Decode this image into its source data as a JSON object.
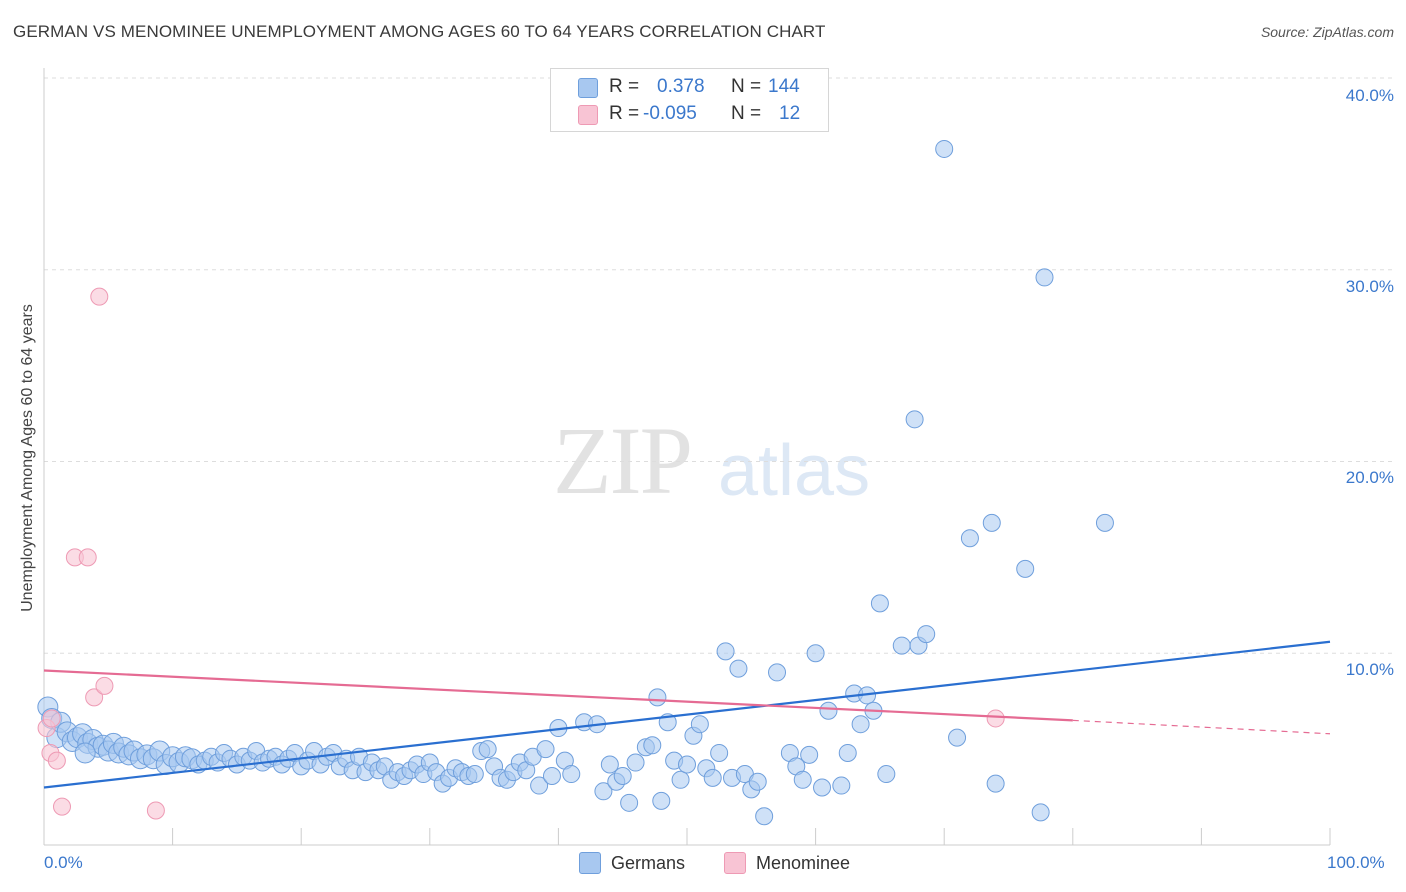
{
  "header": {
    "title": "GERMAN VS MENOMINEE UNEMPLOYMENT AMONG AGES 60 TO 64 YEARS CORRELATION CHART",
    "source": "Source: ZipAtlas.com"
  },
  "watermark": {
    "zip": "ZIP",
    "atlas": "atlas"
  },
  "legend_top": {
    "rows": [
      {
        "r_label": "R =",
        "r_value": "0.378",
        "n_label": "N =",
        "n_value": "144",
        "color": "#a8c8f0"
      },
      {
        "r_label": "R =",
        "r_value": "-0.095",
        "n_label": "N =",
        "n_value": "12",
        "color": "#f5b8cb"
      }
    ]
  },
  "legend_bottom": {
    "items": [
      {
        "label": "Germans",
        "color": "#a8c8f0"
      },
      {
        "label": "Menominee",
        "color": "#f5b8cb"
      }
    ]
  },
  "axes": {
    "ylabel": "Unemployment Among Ages 60 to 64 years",
    "x_tick_labels": [
      "0.0%",
      "100.0%"
    ],
    "y_tick_labels": [
      "10.0%",
      "20.0%",
      "30.0%",
      "40.0%"
    ]
  },
  "colors": {
    "germans_fill": "#a8c8f0",
    "germans_stroke": "#6f9fdc",
    "germans_line": "#2a6fd0",
    "menominee_fill": "#f8c4d4",
    "menominee_stroke": "#ee9ab4",
    "menominee_line": "#e56b93",
    "grid": "#dddddd",
    "tick_text": "#3b78cc"
  },
  "chart_data": {
    "type": "scatter",
    "xlim": [
      0,
      100
    ],
    "ylim": [
      0,
      40
    ],
    "grid": true,
    "legend_position": "bottom",
    "series": [
      {
        "name": "Germans",
        "trend": {
          "x": [
            0,
            100
          ],
          "y": [
            3.0,
            10.6
          ]
        },
        "points": [
          [
            0.3,
            7.2
          ],
          [
            0.6,
            6.6
          ],
          [
            1.0,
            5.6
          ],
          [
            1.3,
            6.4
          ],
          [
            1.8,
            5.9
          ],
          [
            2.2,
            5.4
          ],
          [
            2.6,
            5.6
          ],
          [
            3.0,
            5.8
          ],
          [
            3.4,
            5.3
          ],
          [
            3.8,
            5.5
          ],
          [
            4.2,
            5.1
          ],
          [
            4.6,
            5.2
          ],
          [
            5.0,
            4.9
          ],
          [
            5.4,
            5.3
          ],
          [
            5.8,
            4.8
          ],
          [
            6.2,
            5.1
          ],
          [
            6.6,
            4.7
          ],
          [
            7.0,
            4.9
          ],
          [
            7.5,
            4.5
          ],
          [
            8.0,
            4.7
          ],
          [
            8.5,
            4.5
          ],
          [
            9.0,
            4.9
          ],
          [
            9.5,
            4.2
          ],
          [
            10.0,
            4.6
          ],
          [
            10.5,
            4.3
          ],
          [
            11.0,
            4.6
          ],
          [
            11.5,
            4.5
          ],
          [
            12.0,
            4.2
          ],
          [
            12.5,
            4.4
          ],
          [
            13.0,
            4.6
          ],
          [
            13.5,
            4.3
          ],
          [
            14.0,
            4.8
          ],
          [
            14.5,
            4.5
          ],
          [
            15.0,
            4.2
          ],
          [
            15.5,
            4.6
          ],
          [
            16.0,
            4.4
          ],
          [
            16.5,
            4.9
          ],
          [
            17.0,
            4.3
          ],
          [
            17.5,
            4.5
          ],
          [
            18.0,
            4.6
          ],
          [
            18.5,
            4.2
          ],
          [
            19.0,
            4.5
          ],
          [
            19.5,
            4.8
          ],
          [
            20.0,
            4.1
          ],
          [
            20.5,
            4.4
          ],
          [
            21.0,
            4.9
          ],
          [
            21.5,
            4.2
          ],
          [
            22.0,
            4.6
          ],
          [
            22.5,
            4.8
          ],
          [
            23.0,
            4.1
          ],
          [
            23.5,
            4.5
          ],
          [
            24.0,
            3.9
          ],
          [
            24.5,
            4.6
          ],
          [
            25.0,
            3.8
          ],
          [
            25.5,
            4.3
          ],
          [
            26.0,
            3.9
          ],
          [
            26.5,
            4.1
          ],
          [
            27.0,
            3.4
          ],
          [
            27.5,
            3.8
          ],
          [
            28.0,
            3.6
          ],
          [
            28.5,
            3.9
          ],
          [
            29.0,
            4.2
          ],
          [
            29.5,
            3.7
          ],
          [
            30.0,
            4.3
          ],
          [
            30.5,
            3.8
          ],
          [
            31.0,
            3.2
          ],
          [
            31.5,
            3.5
          ],
          [
            32.0,
            4.0
          ],
          [
            32.5,
            3.8
          ],
          [
            33.0,
            3.6
          ],
          [
            33.5,
            3.7
          ],
          [
            34.0,
            4.9
          ],
          [
            34.5,
            5.0
          ],
          [
            35.0,
            4.1
          ],
          [
            35.5,
            3.5
          ],
          [
            36.0,
            3.4
          ],
          [
            36.5,
            3.8
          ],
          [
            37.0,
            4.3
          ],
          [
            37.5,
            3.9
          ],
          [
            38.0,
            4.6
          ],
          [
            38.5,
            3.1
          ],
          [
            39.0,
            5.0
          ],
          [
            39.5,
            3.6
          ],
          [
            40.0,
            6.1
          ],
          [
            40.5,
            4.4
          ],
          [
            41.0,
            3.7
          ],
          [
            42.0,
            6.4
          ],
          [
            43.0,
            6.3
          ],
          [
            43.5,
            2.8
          ],
          [
            44.0,
            4.2
          ],
          [
            44.5,
            3.3
          ],
          [
            45.0,
            3.6
          ],
          [
            45.5,
            2.2
          ],
          [
            46.0,
            4.3
          ],
          [
            46.8,
            5.1
          ],
          [
            47.3,
            5.2
          ],
          [
            47.7,
            7.7
          ],
          [
            48.0,
            2.3
          ],
          [
            48.5,
            6.4
          ],
          [
            49.0,
            4.4
          ],
          [
            49.5,
            3.4
          ],
          [
            50.0,
            4.2
          ],
          [
            50.5,
            5.7
          ],
          [
            51.0,
            6.3
          ],
          [
            51.5,
            4.0
          ],
          [
            52.0,
            3.5
          ],
          [
            52.5,
            4.8
          ],
          [
            53.0,
            10.1
          ],
          [
            53.5,
            3.5
          ],
          [
            54.0,
            9.2
          ],
          [
            54.5,
            3.7
          ],
          [
            55.0,
            2.9
          ],
          [
            55.5,
            3.3
          ],
          [
            56.0,
            1.5
          ],
          [
            57.0,
            9.0
          ],
          [
            58.0,
            4.8
          ],
          [
            58.5,
            4.1
          ],
          [
            59.0,
            3.4
          ],
          [
            59.5,
            4.7
          ],
          [
            60.0,
            10.0
          ],
          [
            60.5,
            3.0
          ],
          [
            61.0,
            7.0
          ],
          [
            62.0,
            3.1
          ],
          [
            62.5,
            4.8
          ],
          [
            63.0,
            7.9
          ],
          [
            63.5,
            6.3
          ],
          [
            64.0,
            7.8
          ],
          [
            64.5,
            7.0
          ],
          [
            65.0,
            12.6
          ],
          [
            65.5,
            3.7
          ],
          [
            66.7,
            10.4
          ],
          [
            67.7,
            22.2
          ],
          [
            68.0,
            10.4
          ],
          [
            68.6,
            11.0
          ],
          [
            70.0,
            36.3
          ],
          [
            71.0,
            5.6
          ],
          [
            72.0,
            16.0
          ],
          [
            73.7,
            16.8
          ],
          [
            74.0,
            3.2
          ],
          [
            76.3,
            14.4
          ],
          [
            77.5,
            1.7
          ],
          [
            77.8,
            29.6
          ],
          [
            82.5,
            16.8
          ],
          [
            3.2,
            4.8
          ]
        ]
      },
      {
        "name": "Menominee",
        "trend": {
          "x": [
            0,
            80
          ],
          "y": [
            9.1,
            6.5
          ]
        },
        "trend_dashed": {
          "x": [
            80,
            100
          ],
          "y": [
            6.5,
            5.8
          ]
        },
        "points": [
          [
            0.2,
            6.1
          ],
          [
            0.5,
            4.8
          ],
          [
            1.0,
            4.4
          ],
          [
            1.4,
            2.0
          ],
          [
            2.4,
            15.0
          ],
          [
            3.4,
            15.0
          ],
          [
            3.9,
            7.7
          ],
          [
            4.3,
            28.6
          ],
          [
            4.7,
            8.3
          ],
          [
            8.7,
            1.8
          ],
          [
            74.0,
            6.6
          ],
          [
            0.6,
            6.6
          ]
        ]
      }
    ]
  }
}
